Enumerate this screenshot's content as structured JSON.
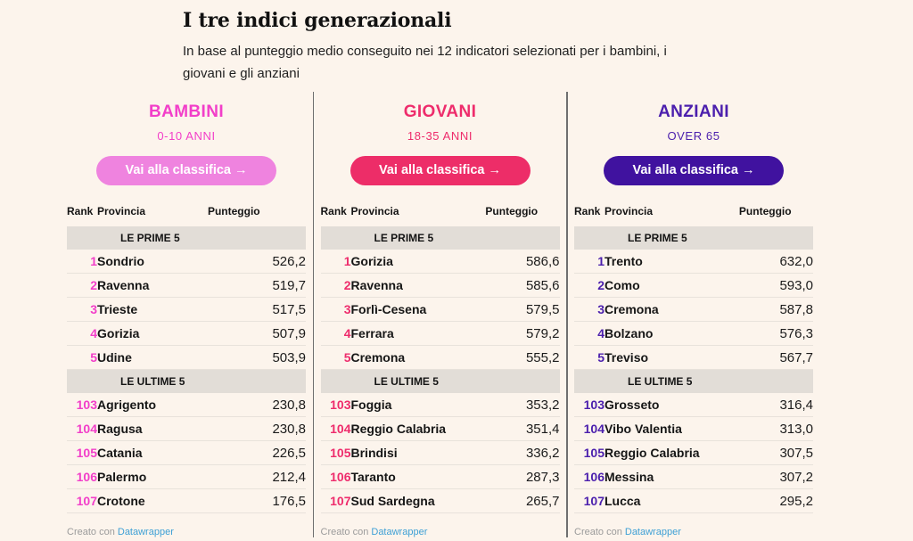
{
  "header": {
    "title": "I tre indici generazionali",
    "subtitle": "In base al punteggio medio conseguito nei 12 indicatori selezionati per i bambini, i giovani e gli anziani"
  },
  "labels": {
    "rank": "Rank",
    "provincia": "Provincia",
    "punteggio": "Punteggio",
    "top_section": "LE PRIME 5",
    "bottom_section": "LE ULTIME 5",
    "attribution_text": "Creato con",
    "attribution_link": "Datawrapper"
  },
  "colors": {
    "background": "#fcf4ec",
    "section_bar": "#e2ddd7",
    "row_border": "#e8e2db",
    "divider": "#6f6f6f",
    "link_blue": "#3ea0d5",
    "bambini_accent": "#f23ec9",
    "bambini_button": "#ef83df",
    "giovani_accent": "#ee2c6c",
    "giovani_button": "#ed2d68",
    "anziani_accent": "#4b1fad",
    "anziani_button": "#40129f"
  },
  "chart_data": {
    "type": "table",
    "title": "I tre indici generazionali",
    "subtitle": "In base al punteggio medio conseguito nei 12 indicatori selezionati per i bambini, i giovani e gli anziani",
    "tables": [
      {
        "id": "bambini",
        "title": "BAMBINI",
        "age_range": "0-10 ANNI",
        "button_label": "Vai alla classifica →",
        "accent": "#f23ec9",
        "button_bg": "#ef83df",
        "prime5": [
          {
            "rank": "1",
            "provincia": "Sondrio",
            "punteggio": "526,2"
          },
          {
            "rank": "2",
            "provincia": "Ravenna",
            "punteggio": "519,7"
          },
          {
            "rank": "3",
            "provincia": "Trieste",
            "punteggio": "517,5"
          },
          {
            "rank": "4",
            "provincia": "Gorizia",
            "punteggio": "507,9"
          },
          {
            "rank": "5",
            "provincia": "Udine",
            "punteggio": "503,9"
          }
        ],
        "ultime5": [
          {
            "rank": "103",
            "provincia": "Agrigento",
            "punteggio": "230,8"
          },
          {
            "rank": "104",
            "provincia": "Ragusa",
            "punteggio": "230,8"
          },
          {
            "rank": "105",
            "provincia": "Catania",
            "punteggio": "226,5"
          },
          {
            "rank": "106",
            "provincia": "Palermo",
            "punteggio": "212,4"
          },
          {
            "rank": "107",
            "provincia": "Crotone",
            "punteggio": "176,5"
          }
        ]
      },
      {
        "id": "giovani",
        "title": "GIOVANI",
        "age_range": "18-35 ANNI",
        "button_label": "Vai alla classifica →",
        "accent": "#ee2c6c",
        "button_bg": "#ed2d68",
        "prime5": [
          {
            "rank": "1",
            "provincia": "Gorizia",
            "punteggio": "586,6"
          },
          {
            "rank": "2",
            "provincia": "Ravenna",
            "punteggio": "585,6"
          },
          {
            "rank": "3",
            "provincia": "Forlì-Cesena",
            "punteggio": "579,5"
          },
          {
            "rank": "4",
            "provincia": "Ferrara",
            "punteggio": "579,2"
          },
          {
            "rank": "5",
            "provincia": "Cremona",
            "punteggio": "555,2"
          }
        ],
        "ultime5": [
          {
            "rank": "103",
            "provincia": "Foggia",
            "punteggio": "353,2"
          },
          {
            "rank": "104",
            "provincia": "Reggio Calabria",
            "punteggio": "351,4"
          },
          {
            "rank": "105",
            "provincia": "Brindisi",
            "punteggio": "336,2"
          },
          {
            "rank": "106",
            "provincia": "Taranto",
            "punteggio": "287,3"
          },
          {
            "rank": "107",
            "provincia": "Sud Sardegna",
            "punteggio": "265,7"
          }
        ]
      },
      {
        "id": "anziani",
        "title": "ANZIANI",
        "age_range": "OVER 65",
        "button_label": "Vai alla classifica →",
        "accent": "#4b1fad",
        "button_bg": "#40129f",
        "prime5": [
          {
            "rank": "1",
            "provincia": "Trento",
            "punteggio": "632,0"
          },
          {
            "rank": "2",
            "provincia": "Como",
            "punteggio": "593,0"
          },
          {
            "rank": "3",
            "provincia": "Cremona",
            "punteggio": "587,8"
          },
          {
            "rank": "4",
            "provincia": "Bolzano",
            "punteggio": "576,3"
          },
          {
            "rank": "5",
            "provincia": "Treviso",
            "punteggio": "567,7"
          }
        ],
        "ultime5": [
          {
            "rank": "103",
            "provincia": "Grosseto",
            "punteggio": "316,4"
          },
          {
            "rank": "104",
            "provincia": "Vibo Valentia",
            "punteggio": "313,0"
          },
          {
            "rank": "105",
            "provincia": "Reggio Calabria",
            "punteggio": "307,5"
          },
          {
            "rank": "106",
            "provincia": "Messina",
            "punteggio": "307,2"
          },
          {
            "rank": "107",
            "provincia": "Lucca",
            "punteggio": "295,2"
          }
        ]
      }
    ]
  }
}
